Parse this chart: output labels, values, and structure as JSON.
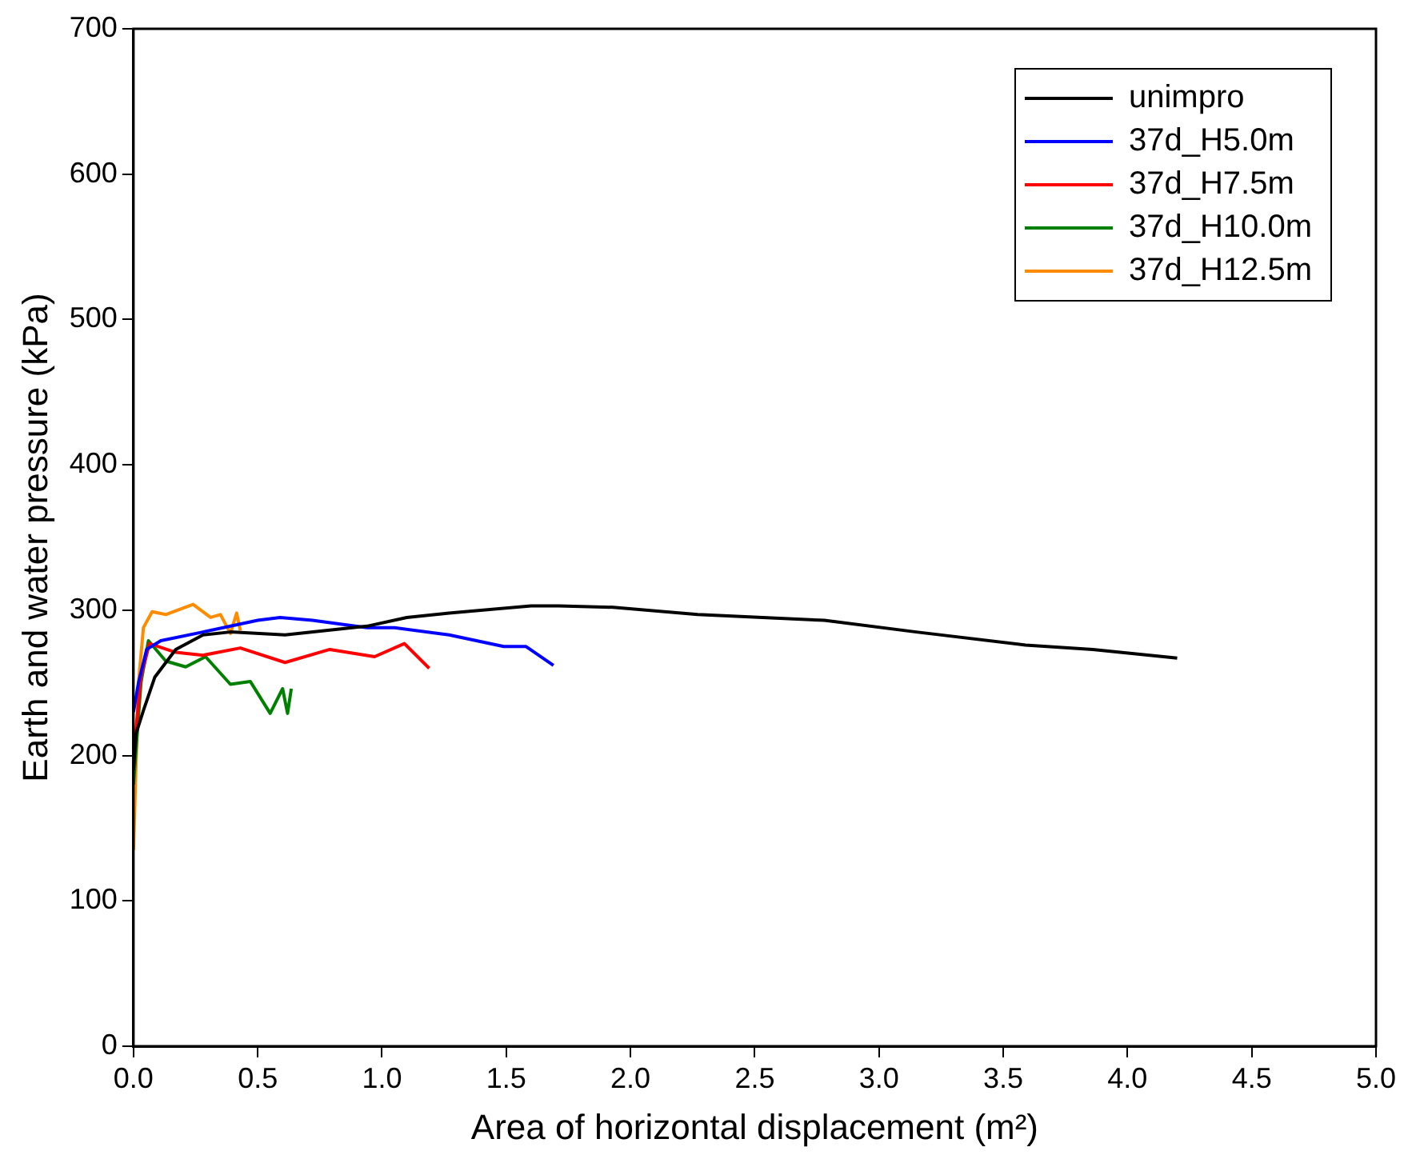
{
  "chart_data": {
    "type": "line",
    "xlabel": "Area of horizontal displacement (m²)",
    "ylabel": "Earth and water pressure (kPa)",
    "xlim": [
      0,
      5
    ],
    "ylim": [
      0,
      700
    ],
    "xticks": [
      {
        "value": 0,
        "label": "0.0"
      },
      {
        "value": 0.5,
        "label": "0.5"
      },
      {
        "value": 1,
        "label": "1.0"
      },
      {
        "value": 1.5,
        "label": "1.5"
      },
      {
        "value": 2,
        "label": "2.0"
      },
      {
        "value": 2.5,
        "label": "2.5"
      },
      {
        "value": 3,
        "label": "3.0"
      },
      {
        "value": 3.5,
        "label": "3.5"
      },
      {
        "value": 4,
        "label": "4.0"
      },
      {
        "value": 4.5,
        "label": "4.5"
      },
      {
        "value": 5,
        "label": "5.0"
      }
    ],
    "yticks": [
      0,
      100,
      200,
      300,
      400,
      500,
      600,
      700
    ],
    "grid": false,
    "legend": "top right",
    "marker": "none",
    "line_style": "solid",
    "series": [
      {
        "name": "unimpro",
        "color": "#000000",
        "x": [
          0,
          0.01,
          0.04,
          0.086,
          0.17,
          0.28,
          0.39,
          0.61,
          0.94,
          1.1,
          1.27,
          1.6,
          1.71,
          1.93,
          2.27,
          2.78,
          3.15,
          3.59,
          3.86,
          4.2
        ],
        "values": [
          190,
          215,
          231,
          254,
          273,
          283,
          285,
          283,
          289,
          295,
          298,
          303,
          303,
          302,
          297,
          293,
          285,
          276,
          273,
          267
        ]
      },
      {
        "name": "37d_H5.0m",
        "color": "#0000ff",
        "x": [
          0,
          0.02,
          0.053,
          0.11,
          0.28,
          0.5,
          0.59,
          0.72,
          0.94,
          1.05,
          1.27,
          1.49,
          1.58,
          1.69
        ],
        "values": [
          230,
          250,
          273,
          279,
          285,
          293,
          295,
          293,
          288,
          288,
          283,
          275,
          275,
          262
        ]
      },
      {
        "name": "37d_H7.5m",
        "color": "#ff0000",
        "x": [
          0,
          0.03,
          0.064,
          0.17,
          0.28,
          0.43,
          0.61,
          0.79,
          0.97,
          1.09,
          1.19
        ],
        "values": [
          200,
          254,
          277,
          271,
          269,
          274,
          264,
          273,
          268,
          277,
          260
        ]
      },
      {
        "name": "37d_H10.0m",
        "color": "#008000",
        "x": [
          0,
          0.03,
          0.06,
          0.13,
          0.21,
          0.29,
          0.39,
          0.47,
          0.55,
          0.6,
          0.62,
          0.635
        ],
        "values": [
          180,
          250,
          279,
          265,
          261,
          268,
          249,
          251,
          229,
          246,
          229,
          246
        ]
      },
      {
        "name": "37d_H12.5m",
        "color": "#ff8c00",
        "x": [
          0,
          0.02,
          0.04,
          0.075,
          0.13,
          0.24,
          0.31,
          0.35,
          0.39,
          0.415,
          0.43
        ],
        "values": [
          135,
          250,
          288,
          299,
          297,
          304,
          295,
          297,
          284,
          298,
          286
        ]
      }
    ]
  }
}
